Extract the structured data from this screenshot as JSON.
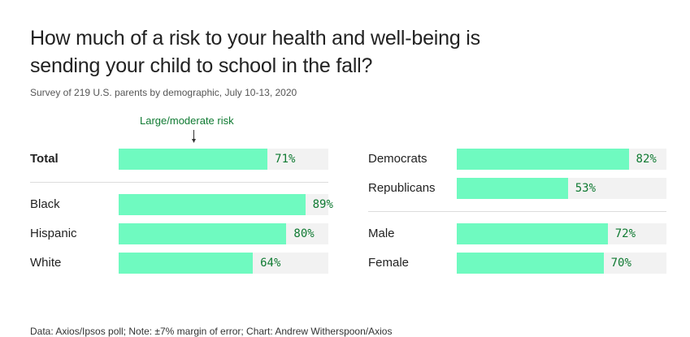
{
  "title": "How much of a risk to your health and well-being is sending your child to school in the fall?",
  "subtitle": "Survey of 219 U.S. parents by demographic, July 10-13, 2020",
  "annotation": "Large/moderate risk",
  "footer": "Data: Axios/Ipsos poll; Note: ±7% margin of error; Chart: Andrew Witherspoon/Axios",
  "colors": {
    "bar": "#6ffac0",
    "track": "#f2f2f2",
    "value_text": "#0f7a32",
    "annotation": "#0f7a32"
  },
  "chart_data": {
    "type": "bar",
    "orientation": "horizontal",
    "title": "How much of a risk to your health and well-being is sending your child to school in the fall?",
    "subtitle": "Survey of 219 U.S. parents by demographic, July 10-13, 2020",
    "series_name": "Large/moderate risk",
    "xlim": [
      0,
      100
    ],
    "groups": [
      {
        "column": "left",
        "items": [
          {
            "label": "Total",
            "value": 71,
            "display": "71%",
            "bold": true
          }
        ]
      },
      {
        "column": "left",
        "items": [
          {
            "label": "Black",
            "value": 89,
            "display": "89%"
          },
          {
            "label": "Hispanic",
            "value": 80,
            "display": "80%"
          },
          {
            "label": "White",
            "value": 64,
            "display": "64%"
          }
        ]
      },
      {
        "column": "right",
        "items": [
          {
            "label": "Democrats",
            "value": 82,
            "display": "82%"
          },
          {
            "label": "Republicans",
            "value": 53,
            "display": "53%"
          }
        ]
      },
      {
        "column": "right",
        "items": [
          {
            "label": "Male",
            "value": 72,
            "display": "72%"
          },
          {
            "label": "Female",
            "value": 70,
            "display": "70%"
          }
        ]
      }
    ]
  }
}
